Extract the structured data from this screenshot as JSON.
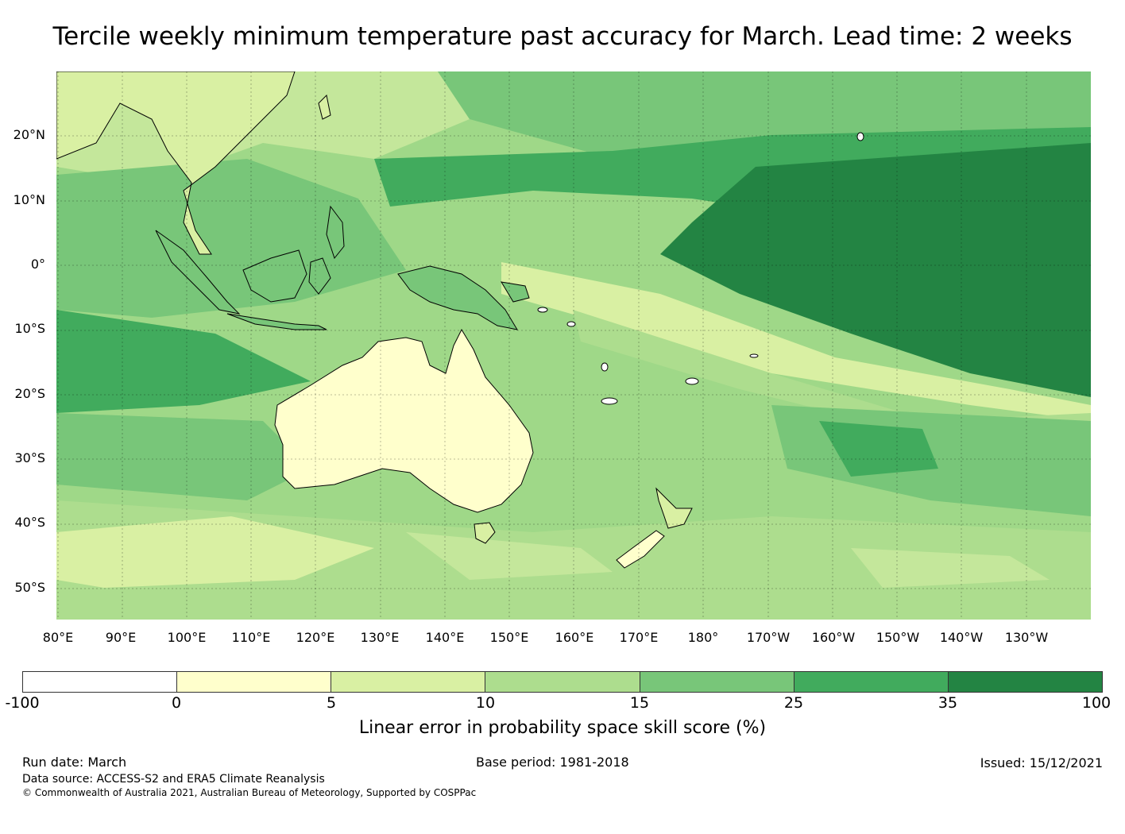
{
  "title": "Tercile weekly minimum temperature past accuracy for March. Lead time: 2 weeks",
  "map": {
    "lat_labels": [
      "20°N",
      "10°N",
      "0°",
      "10°S",
      "20°S",
      "30°S",
      "40°S",
      "50°S"
    ],
    "lon_labels": [
      "80°E",
      "90°E",
      "100°E",
      "110°E",
      "120°E",
      "130°E",
      "140°E",
      "150°E",
      "160°E",
      "170°E",
      "180°",
      "170°W",
      "160°W",
      "150°W",
      "140°W",
      "130°W"
    ],
    "lat_range": [
      -55,
      30
    ],
    "lon_range": [
      80,
      240
    ]
  },
  "colorbar": {
    "ticks": [
      "-100",
      "0",
      "5",
      "10",
      "15",
      "25",
      "35",
      "100"
    ],
    "colors": [
      "#ffffff",
      "#ffffcc",
      "#d9f0a3",
      "#addd8e",
      "#78c679",
      "#41ab5d",
      "#238443"
    ],
    "label": "Linear error in probability space skill score (%)"
  },
  "footer": {
    "run_date": "Run date: March",
    "base_period": "Base period: 1981-2018",
    "issued": "Issued: 15/12/2021",
    "data_source": "Data source: ACCESS-S2 and ERA5 Climate Reanalysis",
    "copyright": "© Commonwealth of Australia 2021, Australian Bureau of Meteorology, Supported by COSPPac"
  }
}
